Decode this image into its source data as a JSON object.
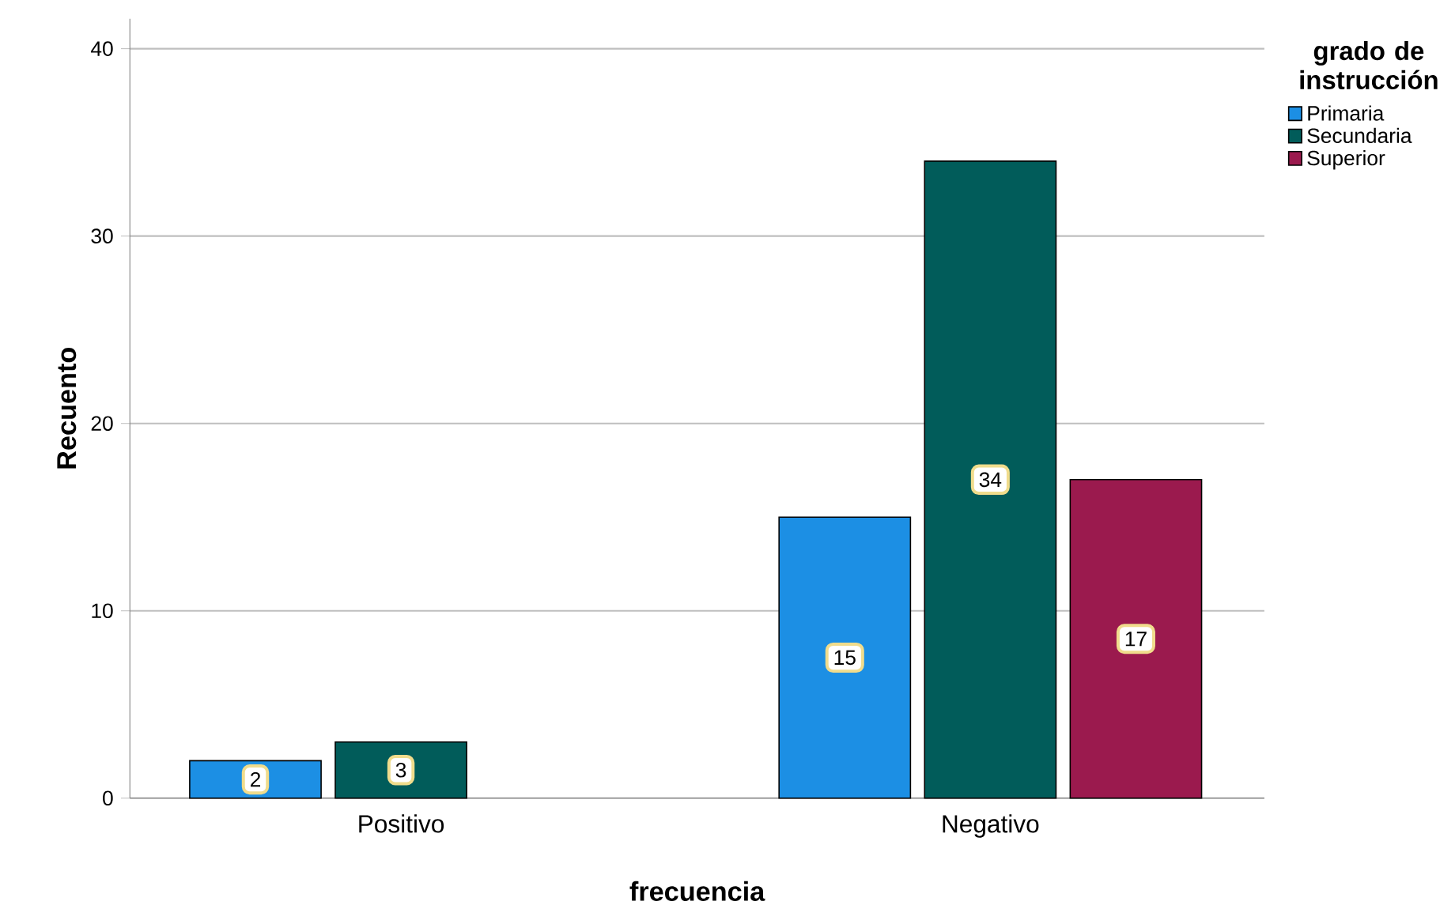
{
  "chart_data": {
    "type": "bar",
    "xlabel": "frecuencia",
    "ylabel": "Recuento",
    "legend_title": "grado de instrucción",
    "categories": [
      "Positivo",
      "Negativo"
    ],
    "series": [
      {
        "name": "Primaria",
        "color": "#1c8fe4",
        "values": [
          2,
          15
        ]
      },
      {
        "name": "Secundaria",
        "color": "#015c5a",
        "values": [
          3,
          34
        ]
      },
      {
        "name": "Superior",
        "color": "#9b1a4e",
        "values": [
          null,
          17
        ]
      }
    ],
    "ylim": [
      0,
      41.6
    ],
    "yticks": [
      0,
      10,
      20,
      30,
      40
    ],
    "grid": "y",
    "legend": "top right",
    "data_labels": true
  }
}
